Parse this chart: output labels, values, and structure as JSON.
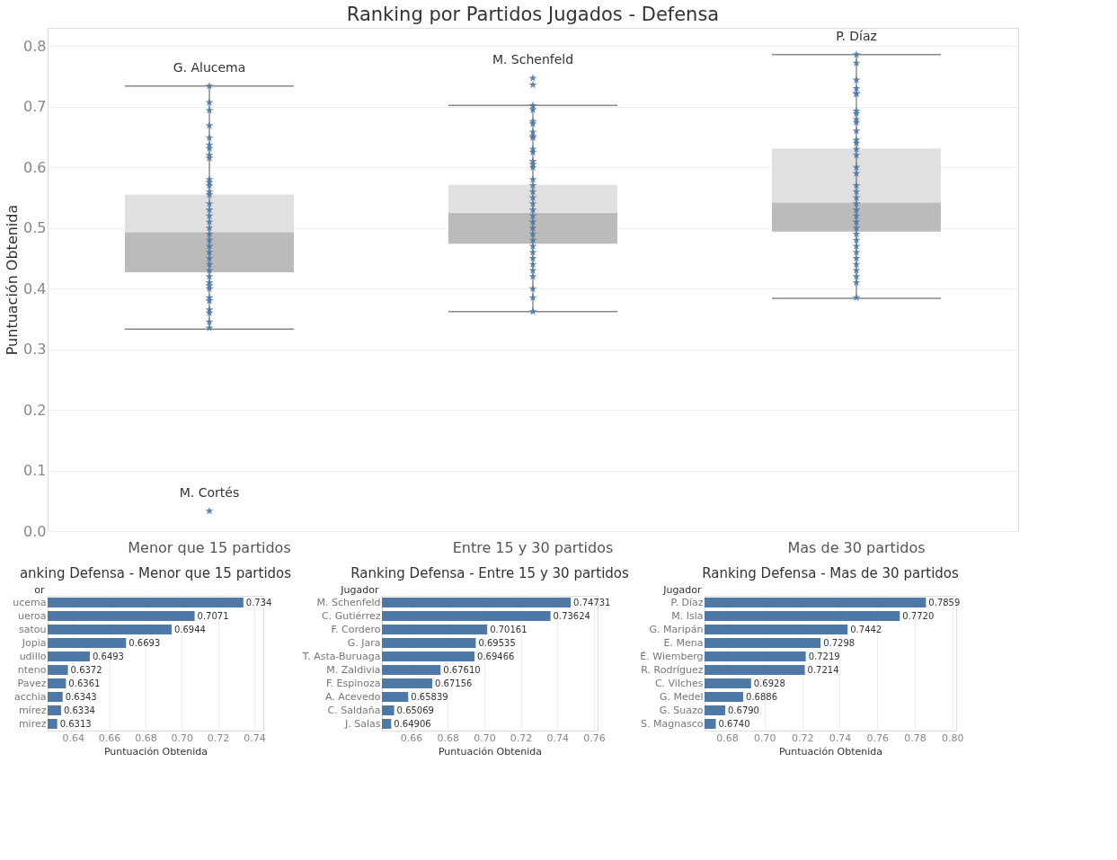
{
  "chart_data": [
    {
      "type": "box",
      "title": "Ranking por Partidos Jugados - Defensa",
      "ylabel": "Puntuación Obtenida",
      "categories": [
        "Menor que 15 partidos",
        "Entre 15 y 30 partidos",
        "Mas de 30 partidos"
      ],
      "boxes": [
        {
          "low": 0.333,
          "q1": 0.427,
          "median": 0.493,
          "q3": 0.555,
          "high": 0.734
        },
        {
          "low": 0.362,
          "q1": 0.474,
          "median": 0.525,
          "q3": 0.571,
          "high": 0.702
        },
        {
          "low": 0.384,
          "q1": 0.494,
          "median": 0.542,
          "q3": 0.631,
          "high": 0.786
        }
      ],
      "series": [
        {
          "type": "scatter",
          "color": "#4e79a7",
          "x": [
            "Menor que 15 partidos",
            "Menor que 15 partidos",
            "Menor que 15 partidos",
            "Menor que 15 partidos",
            "Menor que 15 partidos",
            "Menor que 15 partidos",
            "Menor que 15 partidos",
            "Menor que 15 partidos",
            "Menor que 15 partidos",
            "Menor que 15 partidos",
            "Menor que 15 partidos",
            "Menor que 15 partidos",
            "Menor que 15 partidos",
            "Menor que 15 partidos",
            "Menor que 15 partidos",
            "Menor que 15 partidos",
            "Menor que 15 partidos",
            "Menor que 15 partidos",
            "Menor que 15 partidos",
            "Menor que 15 partidos",
            "Menor que 15 partidos",
            "Menor que 15 partidos",
            "Menor que 15 partidos",
            "Menor que 15 partidos",
            "Menor que 15 partidos",
            "Menor que 15 partidos",
            "Menor que 15 partidos",
            "Menor que 15 partidos",
            "Menor que 15 partidos",
            "Menor que 15 partidos",
            "Menor que 15 partidos",
            "Menor que 15 partidos",
            "Menor que 15 partidos",
            "Menor que 15 partidos",
            "Menor que 15 partidos",
            "Menor que 15 partidos",
            "Menor que 15 partidos"
          ],
          "values": [
            0.734,
            0.707,
            0.694,
            0.669,
            0.649,
            0.637,
            0.631,
            0.62,
            0.615,
            0.58,
            0.575,
            0.57,
            0.56,
            0.555,
            0.54,
            0.53,
            0.52,
            0.51,
            0.5,
            0.49,
            0.48,
            0.47,
            0.46,
            0.45,
            0.44,
            0.43,
            0.42,
            0.41,
            0.405,
            0.4,
            0.385,
            0.38,
            0.365,
            0.36,
            0.345,
            0.335,
            0.033
          ]
        },
        {
          "type": "scatter",
          "color": "#4e79a7",
          "x": [
            "Entre 15 y 30 partidos",
            "Entre 15 y 30 partidos",
            "Entre 15 y 30 partidos",
            "Entre 15 y 30 partidos",
            "Entre 15 y 30 partidos",
            "Entre 15 y 30 partidos",
            "Entre 15 y 30 partidos",
            "Entre 15 y 30 partidos",
            "Entre 15 y 30 partidos",
            "Entre 15 y 30 partidos",
            "Entre 15 y 30 partidos",
            "Entre 15 y 30 partidos",
            "Entre 15 y 30 partidos",
            "Entre 15 y 30 partidos",
            "Entre 15 y 30 partidos",
            "Entre 15 y 30 partidos",
            "Entre 15 y 30 partidos",
            "Entre 15 y 30 partidos",
            "Entre 15 y 30 partidos",
            "Entre 15 y 30 partidos",
            "Entre 15 y 30 partidos",
            "Entre 15 y 30 partidos",
            "Entre 15 y 30 partidos",
            "Entre 15 y 30 partidos",
            "Entre 15 y 30 partidos",
            "Entre 15 y 30 partidos",
            "Entre 15 y 30 partidos",
            "Entre 15 y 30 partidos",
            "Entre 15 y 30 partidos",
            "Entre 15 y 30 partidos",
            "Entre 15 y 30 partidos",
            "Entre 15 y 30 partidos",
            "Entre 15 y 30 partidos",
            "Entre 15 y 30 partidos"
          ],
          "values": [
            0.747,
            0.736,
            0.702,
            0.695,
            0.676,
            0.672,
            0.658,
            0.651,
            0.649,
            0.63,
            0.625,
            0.61,
            0.605,
            0.6,
            0.58,
            0.57,
            0.56,
            0.55,
            0.54,
            0.53,
            0.52,
            0.51,
            0.5,
            0.49,
            0.48,
            0.47,
            0.46,
            0.45,
            0.44,
            0.43,
            0.42,
            0.4,
            0.385,
            0.362
          ]
        },
        {
          "type": "scatter",
          "color": "#4e79a7",
          "x": [
            "Mas de 30 partidos",
            "Mas de 30 partidos",
            "Mas de 30 partidos",
            "Mas de 30 partidos",
            "Mas de 30 partidos",
            "Mas de 30 partidos",
            "Mas de 30 partidos",
            "Mas de 30 partidos",
            "Mas de 30 partidos",
            "Mas de 30 partidos",
            "Mas de 30 partidos",
            "Mas de 30 partidos",
            "Mas de 30 partidos",
            "Mas de 30 partidos",
            "Mas de 30 partidos",
            "Mas de 30 partidos",
            "Mas de 30 partidos",
            "Mas de 30 partidos",
            "Mas de 30 partidos",
            "Mas de 30 partidos",
            "Mas de 30 partidos",
            "Mas de 30 partidos",
            "Mas de 30 partidos",
            "Mas de 30 partidos",
            "Mas de 30 partidos",
            "Mas de 30 partidos",
            "Mas de 30 partidos",
            "Mas de 30 partidos",
            "Mas de 30 partidos",
            "Mas de 30 partidos",
            "Mas de 30 partidos",
            "Mas de 30 partidos",
            "Mas de 30 partidos",
            "Mas de 30 partidos",
            "Mas de 30 partidos"
          ],
          "values": [
            0.786,
            0.772,
            0.744,
            0.73,
            0.722,
            0.721,
            0.693,
            0.689,
            0.679,
            0.674,
            0.66,
            0.645,
            0.64,
            0.63,
            0.62,
            0.6,
            0.59,
            0.57,
            0.56,
            0.55,
            0.54,
            0.53,
            0.52,
            0.51,
            0.5,
            0.49,
            0.48,
            0.47,
            0.46,
            0.45,
            0.44,
            0.43,
            0.42,
            0.41,
            0.385
          ]
        }
      ],
      "marker": "star",
      "annotations": [
        {
          "text": "G. Alucema",
          "x": "Menor que 15 partidos",
          "y": 0.734
        },
        {
          "text": "M. Cortés",
          "x": "Menor que 15 partidos",
          "y": 0.033
        },
        {
          "text": "M. Schenfeld",
          "x": "Entre 15 y 30 partidos",
          "y": 0.747
        },
        {
          "text": "P. Díaz",
          "x": "Mas de 30 partidos",
          "y": 0.786
        }
      ],
      "ylim": [
        0,
        0.83
      ],
      "yticks": [
        {
          "value": 0,
          "label": "0.0"
        },
        0.1,
        0.2,
        0.3,
        0.4,
        0.5,
        0.6,
        0.7,
        0.8
      ],
      "grid": "y"
    },
    {
      "type": "bar",
      "orientation": "horizontal",
      "title": "anking Defensa - Menor que 15 partidos",
      "ylabel": "or",
      "xlabel": "Puntuación Obtenida",
      "categories": [
        "ucema",
        "ueroa",
        "satou",
        "Jopia",
        "udillo",
        "nteno",
        "Pavez",
        "acchia",
        "mírez",
        "mirez"
      ],
      "values": [
        0.734,
        0.7071,
        0.6944,
        0.6693,
        0.6493,
        0.6372,
        0.6361,
        0.6343,
        0.6334,
        0.6313
      ],
      "value_labels": [
        "0.734",
        "0.7071",
        "0.6944",
        "0.6693",
        "0.6493",
        "0.6372",
        "0.6361",
        "0.6343",
        "0.6334",
        "0.6313"
      ],
      "color": "#4e79a7",
      "xlim": [
        0.626,
        0.745
      ],
      "xticks": [
        {
          "value": 0.64,
          "label": "0.64"
        },
        {
          "value": 0.66,
          "label": "0.66"
        },
        {
          "value": 0.68,
          "label": "0.68"
        },
        {
          "value": 0.7,
          "label": "0.70"
        },
        {
          "value": 0.72,
          "label": "0.72"
        },
        {
          "value": 0.74,
          "label": "0.74"
        }
      ],
      "grid": "x"
    },
    {
      "type": "bar",
      "orientation": "horizontal",
      "title": "Ranking Defensa - Entre 15 y 30 partidos",
      "ylabel": "Jugador",
      "xlabel": "Puntuación Obtenida",
      "categories": [
        "M. Schenfeld",
        "C. Gutiérrez",
        "F. Cordero",
        "G. Jara",
        "T. Asta-Buruaga",
        "M. Zaldivia",
        "F. Espinoza",
        "A. Acevedo",
        "C. Saldaña",
        "J. Salas"
      ],
      "values": [
        0.74731,
        0.73624,
        0.70161,
        0.69535,
        0.69466,
        0.6761,
        0.67156,
        0.65839,
        0.65069,
        0.64906
      ],
      "value_labels": [
        "0.74731",
        "0.73624",
        "0.70161",
        "0.69535",
        "0.69466",
        "0.67610",
        "0.67156",
        "0.65839",
        "0.65069",
        "0.64906"
      ],
      "color": "#4e79a7",
      "xlim": [
        0.644,
        0.762
      ],
      "xticks": [
        {
          "value": 0.66,
          "label": "0.66"
        },
        {
          "value": 0.68,
          "label": "0.68"
        },
        {
          "value": 0.7,
          "label": "0.70"
        },
        {
          "value": 0.72,
          "label": "0.72"
        },
        {
          "value": 0.74,
          "label": "0.74"
        },
        {
          "value": 0.76,
          "label": "0.76"
        }
      ],
      "grid": "x"
    },
    {
      "type": "bar",
      "orientation": "horizontal",
      "title": "Ranking Defensa - Mas de 30 partidos",
      "ylabel": "Jugador",
      "xlabel": "Puntuación Obtenida",
      "categories": [
        "P. Díaz",
        "M. Isla",
        "G. Maripán",
        "E. Mena",
        "É. Wiemberg",
        "R. Rodríguez",
        "C. Vilches",
        "G. Medel",
        "G. Suazo",
        "S. Magnasco"
      ],
      "values": [
        0.7859,
        0.772,
        0.7442,
        0.7298,
        0.7219,
        0.7214,
        0.6928,
        0.6886,
        0.679,
        0.674
      ],
      "value_labels": [
        "0.7859",
        "0.7720",
        "0.7442",
        "0.7298",
        "0.7219",
        "0.7214",
        "0.6928",
        "0.6886",
        "0.6790",
        "0.6740"
      ],
      "color": "#4e79a7",
      "xlim": [
        0.668,
        0.802
      ],
      "xticks": [
        {
          "value": 0.68,
          "label": "0.68"
        },
        {
          "value": 0.7,
          "label": "0.70"
        },
        {
          "value": 0.72,
          "label": "0.72"
        },
        {
          "value": 0.74,
          "label": "0.74"
        },
        {
          "value": 0.76,
          "label": "0.76"
        },
        {
          "value": 0.78,
          "label": "0.78"
        },
        {
          "value": 0.8,
          "label": "0.80"
        }
      ],
      "grid": "x"
    }
  ]
}
